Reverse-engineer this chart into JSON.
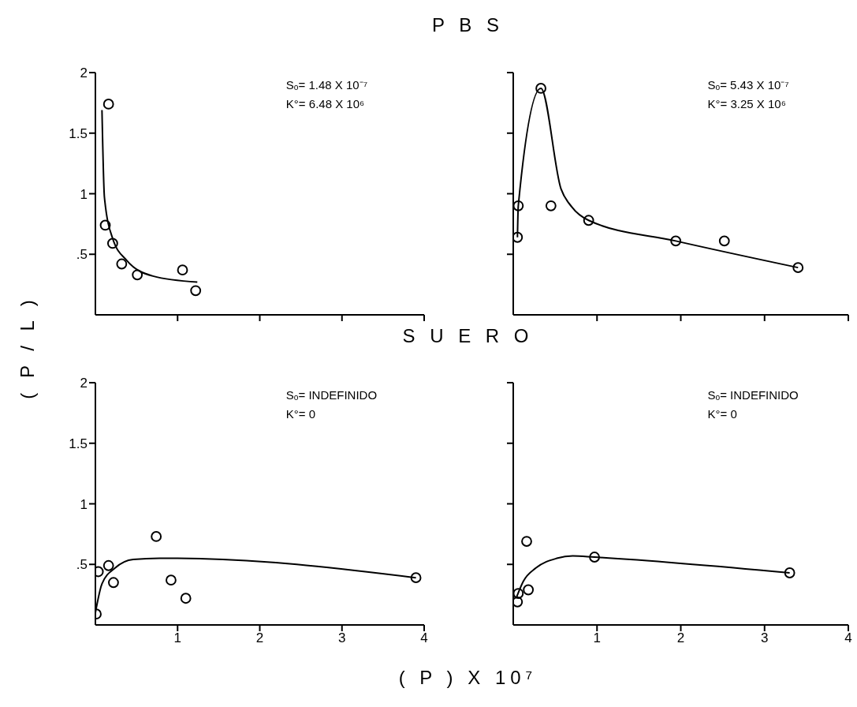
{
  "chart_data": [
    {
      "type": "scatter",
      "title": "P B S",
      "ylabel": "( P / L )",
      "xlim": [
        0,
        4
      ],
      "xticks": [
        1,
        2,
        3,
        4
      ],
      "ylim": [
        0,
        2
      ],
      "yticks": [
        {
          "value": 0.5,
          "label": ".5"
        },
        1,
        1.5,
        2
      ],
      "tick_labels": "y",
      "marker": "circle",
      "annotations": [
        "Sₒ= 1.48 X 10⁻⁷",
        "K°= 6.48 X 10⁶"
      ],
      "series": [
        {
          "type": "scatter",
          "color": "#000000",
          "x": [
            0.16,
            0.12,
            0.21,
            0.32,
            0.51,
            1.06,
            1.22
          ],
          "values": [
            1.74,
            0.74,
            0.59,
            0.42,
            0.33,
            0.37,
            0.2
          ]
        },
        {
          "type": "line",
          "color": "#000000",
          "marker": "none",
          "x": [
            0.08,
            0.11,
            0.21,
            0.38,
            0.7,
            1.24
          ],
          "values": [
            1.69,
            0.97,
            0.63,
            0.45,
            0.32,
            0.27
          ]
        }
      ]
    },
    {
      "type": "scatter",
      "xlim": [
        0,
        4
      ],
      "xticks": [
        1,
        2,
        3,
        4
      ],
      "ylim": [
        0,
        2
      ],
      "yticks": [
        0.5,
        1,
        1.5,
        2
      ],
      "tick_labels": false,
      "marker": "circle",
      "annotations": [
        "Sₒ= 5.43 X 10⁻⁷",
        "K°= 3.25 X 10⁶"
      ],
      "series": [
        {
          "type": "scatter",
          "color": "#000000",
          "x": [
            0.05,
            0.06,
            0.33,
            0.45,
            0.9,
            1.94,
            2.52,
            3.4
          ],
          "values": [
            0.64,
            0.9,
            1.87,
            0.9,
            0.78,
            0.61,
            0.61,
            0.39
          ]
        },
        {
          "type": "line",
          "color": "#000000",
          "marker": "none",
          "x": [
            0.05,
            0.06,
            0.33,
            0.57,
            0.7,
            0.9,
            1.94,
            3.4
          ],
          "values": [
            0.64,
            0.9,
            1.87,
            1.04,
            0.89,
            0.78,
            0.61,
            0.39
          ]
        }
      ]
    },
    {
      "type": "scatter",
      "title": "S U E R O",
      "xlabel": "( P )  X 10⁷",
      "xlim": [
        0,
        4
      ],
      "xticks": [
        1,
        2,
        3,
        4
      ],
      "ylim": [
        0,
        2
      ],
      "yticks": [
        {
          "value": 0.5,
          "label": ".5"
        },
        1,
        1.5,
        2
      ],
      "marker": "circle",
      "annotations": [
        "Sₒ= INDEFINIDO",
        "K°= 0"
      ],
      "series": [
        {
          "type": "scatter",
          "color": "#000000",
          "x": [
            0.01,
            0.035,
            0.16,
            0.22,
            0.74,
            0.92,
            1.1,
            3.9
          ],
          "values": [
            0.09,
            0.44,
            0.49,
            0.35,
            0.73,
            0.37,
            0.22,
            0.39
          ]
        },
        {
          "type": "line",
          "color": "#000000",
          "marker": "none",
          "x": [
            0,
            0.08,
            0.24,
            0.46,
            0.78,
            1.0,
            3.9
          ],
          "values": [
            0.1,
            0.34,
            0.47,
            0.54,
            0.55,
            0.55,
            0.39
          ]
        }
      ]
    },
    {
      "type": "scatter",
      "xlim": [
        0,
        4
      ],
      "xticks": [
        1,
        2,
        3,
        4
      ],
      "ylim": [
        0,
        2
      ],
      "yticks": [
        0.5,
        1,
        1.5,
        2
      ],
      "tick_labels": "x",
      "marker": "circle",
      "annotations": [
        "Sₒ= INDEFINIDO",
        "K°= 0"
      ],
      "series": [
        {
          "type": "scatter",
          "color": "#000000",
          "x": [
            0.05,
            0.06,
            0.18,
            0.16,
            0.97,
            3.3
          ],
          "values": [
            0.19,
            0.26,
            0.29,
            0.69,
            0.56,
            0.43
          ]
        },
        {
          "type": "line",
          "color": "#000000",
          "marker": "none",
          "x": [
            0.04,
            0.12,
            0.27,
            0.52,
            0.71,
            0.97,
            3.3
          ],
          "values": [
            0.23,
            0.36,
            0.47,
            0.55,
            0.57,
            0.56,
            0.43
          ]
        }
      ]
    }
  ]
}
